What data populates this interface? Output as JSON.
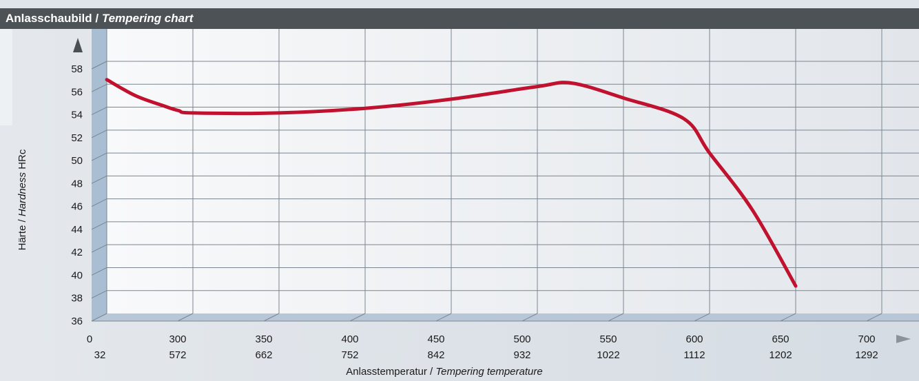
{
  "header": {
    "title_de": "Anlasschaubild",
    "separator": " / ",
    "title_en": "Tempering chart"
  },
  "colors": {
    "curve": "#c0122f",
    "header_bg": "#4d5257",
    "wall_blue": "#a9bed2",
    "floor_blue": "#b7c7d7"
  },
  "chart_data": {
    "type": "line",
    "title": "Anlasschaubild / Tempering chart",
    "xlabel_de": "Anlasstemperatur",
    "xlabel_en": "Tempering temperature",
    "ylabel_de": "Härte",
    "ylabel_en": "Hardness",
    "ylabel_unit": "HRc",
    "x_ticks_c": [
      "0",
      "300",
      "350",
      "400",
      "450",
      "500",
      "550",
      "600",
      "650",
      "700"
    ],
    "x_ticks_f": [
      "32",
      "572",
      "662",
      "752",
      "842",
      "932",
      "1022",
      "1112",
      "1202",
      "1292"
    ],
    "y_ticks": [
      "58",
      "56",
      "54",
      "52",
      "50",
      "48",
      "46",
      "44",
      "42",
      "40",
      "38",
      "36"
    ],
    "ylim": [
      36,
      58
    ],
    "grid": true,
    "series": [
      {
        "x_c": [
          0,
          100,
          200,
          250,
          300,
          350,
          400,
          450,
          500,
          520,
          550,
          585,
          600,
          625,
          650
        ],
        "y": [
          56.4,
          55.0,
          54.1,
          53.7,
          53.5,
          53.5,
          53.9,
          54.7,
          55.8,
          56.1,
          54.8,
          53.0,
          50.0,
          45.0,
          38.4
        ]
      }
    ]
  }
}
